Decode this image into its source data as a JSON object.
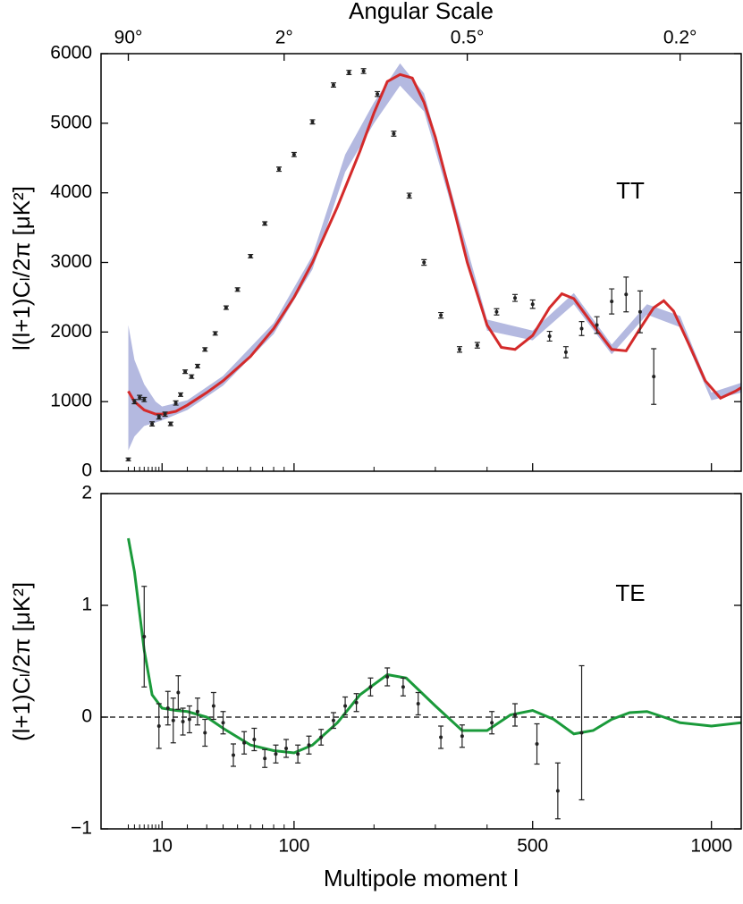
{
  "chart_data": [
    {
      "type": "line",
      "title": "Angular Scale",
      "panel_label": "TT",
      "ylabel": "l(l+1)Cₗ/2π [μK²]",
      "xscale": "sqrt",
      "xlim": [
        0,
        1100
      ],
      "ylim": [
        0,
        6000
      ],
      "yticks": [
        0,
        1000,
        2000,
        3000,
        4000,
        5000,
        6000
      ],
      "x2ticks": [
        {
          "value": 2,
          "label": "90°"
        },
        {
          "value": 90,
          "label": "2°"
        },
        {
          "value": 360,
          "label": "0.5°"
        },
        {
          "value": 900,
          "label": "0.2°"
        }
      ],
      "band": {
        "color": "#b4b9e0",
        "x": [
          2,
          3,
          5,
          8,
          10,
          20,
          40,
          80,
          120,
          160,
          200,
          240,
          280,
          330,
          400,
          500,
          600,
          700,
          800,
          900,
          1000,
          1100
        ],
        "lower": [
          300,
          500,
          650,
          700,
          730,
          880,
          1230,
          1970,
          2900,
          4300,
          5000,
          5540,
          5170,
          3800,
          2020,
          1880,
          2400,
          1680,
          2250,
          2070,
          1020,
          1130
        ],
        "upper": [
          2100,
          1600,
          1250,
          1000,
          930,
          1020,
          1370,
          2130,
          3100,
          4550,
          5300,
          5860,
          5430,
          4000,
          2180,
          2020,
          2560,
          1820,
          2400,
          2230,
          1130,
          1270
        ]
      },
      "model": {
        "color": "#d42a2a",
        "x": [
          2,
          3,
          5,
          8,
          10,
          15,
          20,
          30,
          40,
          60,
          80,
          100,
          120,
          150,
          180,
          200,
          220,
          240,
          260,
          280,
          300,
          330,
          360,
          400,
          430,
          460,
          500,
          540,
          570,
          600,
          650,
          700,
          740,
          780,
          820,
          850,
          880,
          930,
          980,
          1030,
          1080,
          1100
        ],
        "values": [
          1150,
          1000,
          880,
          820,
          820,
          860,
          950,
          1130,
          1300,
          1650,
          2050,
          2500,
          3000,
          3800,
          4600,
          5150,
          5600,
          5700,
          5650,
          5300,
          4800,
          3900,
          3000,
          2100,
          1780,
          1750,
          1950,
          2350,
          2550,
          2480,
          2100,
          1750,
          1730,
          2050,
          2350,
          2450,
          2300,
          1800,
          1300,
          1050,
          1150,
          1200
        ]
      },
      "points": {
        "color": "#222222",
        "x": [
          2,
          3,
          4,
          5,
          7,
          9,
          11,
          13,
          15,
          17,
          19,
          22,
          25,
          29,
          35,
          42,
          50,
          60,
          72,
          85,
          100,
          120,
          145,
          165,
          185,
          205,
          230,
          255,
          280,
          310,
          345,
          380,
          420,
          460,
          500,
          540,
          580,
          620,
          660,
          700,
          740,
          780,
          820
        ],
        "values": [
          170,
          1000,
          1060,
          1030,
          680,
          780,
          820,
          680,
          980,
          1100,
          1430,
          1360,
          1510,
          1750,
          1980,
          2350,
          2610,
          3090,
          3560,
          4340,
          4550,
          5020,
          5550,
          5730,
          5750,
          5420,
          4850,
          3960,
          3000,
          2240,
          1750,
          1810,
          2290,
          2490,
          2400,
          1940,
          1710,
          2050,
          2100,
          2440,
          2540,
          2290,
          1360
        ],
        "errors": [
          20,
          30,
          30,
          30,
          30,
          30,
          30,
          25,
          30,
          25,
          25,
          25,
          25,
          25,
          25,
          25,
          25,
          25,
          25,
          30,
          30,
          30,
          30,
          30,
          35,
          35,
          35,
          35,
          40,
          40,
          40,
          40,
          45,
          50,
          60,
          70,
          80,
          100,
          120,
          180,
          250,
          300,
          400
        ]
      }
    },
    {
      "type": "line",
      "panel_label": "TE",
      "ylabel": "(l+1)Cₗ/2π [μK²]",
      "xlabel": "Multipole moment  l",
      "xscale": "sqrt",
      "xlim": [
        0,
        1100
      ],
      "ylim": [
        -1,
        2
      ],
      "yticks": [
        {
          "value": -1,
          "label": "−1"
        },
        0,
        1,
        2
      ],
      "zero_line": true,
      "xticks": [
        10,
        100,
        500,
        1000
      ],
      "xminor": [
        2,
        3,
        4,
        5,
        6,
        7,
        8,
        9,
        20,
        30,
        40,
        50,
        60,
        70,
        80,
        90,
        200,
        300,
        400
      ],
      "model": {
        "color": "#1a9a3a",
        "x": [
          2,
          3,
          5,
          7,
          10,
          15,
          20,
          30,
          40,
          60,
          80,
          100,
          120,
          150,
          180,
          220,
          250,
          300,
          350,
          400,
          450,
          500,
          550,
          600,
          650,
          700,
          750,
          800,
          850,
          900,
          1000,
          1100
        ],
        "values": [
          1.6,
          1.3,
          0.6,
          0.2,
          0.08,
          0.06,
          0.05,
          0.0,
          -0.1,
          -0.25,
          -0.3,
          -0.32,
          -0.25,
          -0.05,
          0.2,
          0.38,
          0.35,
          0.1,
          -0.12,
          -0.12,
          0.02,
          0.06,
          -0.02,
          -0.15,
          -0.12,
          -0.02,
          0.04,
          0.05,
          0.0,
          -0.05,
          -0.08,
          -0.05
        ]
      },
      "points": {
        "color": "#222222",
        "x": [
          5,
          9,
          12,
          14,
          16,
          18,
          21,
          25,
          29,
          34,
          40,
          47,
          55,
          63,
          72,
          82,
          92,
          104,
          116,
          130,
          145,
          160,
          175,
          195,
          220,
          245,
          270,
          310,
          350,
          410,
          460,
          510,
          560,
          620
        ],
        "values": [
          0.72,
          -0.08,
          0.08,
          -0.03,
          0.22,
          -0.04,
          -0.02,
          0.05,
          -0.14,
          0.1,
          -0.05,
          -0.34,
          -0.23,
          -0.2,
          -0.37,
          -0.33,
          -0.28,
          -0.33,
          -0.25,
          -0.18,
          -0.03,
          0.1,
          0.13,
          0.27,
          0.36,
          0.27,
          0.12,
          -0.18,
          -0.17,
          -0.05,
          0.02,
          -0.24,
          -0.66,
          -0.14
        ],
        "errors": [
          0.45,
          0.2,
          0.15,
          0.2,
          0.15,
          0.12,
          0.12,
          0.12,
          0.12,
          0.12,
          0.1,
          0.1,
          0.1,
          0.1,
          0.08,
          0.08,
          0.08,
          0.08,
          0.08,
          0.07,
          0.07,
          0.08,
          0.08,
          0.08,
          0.08,
          0.08,
          0.1,
          0.1,
          0.1,
          0.1,
          0.1,
          0.18,
          0.25,
          0.6
        ]
      }
    }
  ]
}
